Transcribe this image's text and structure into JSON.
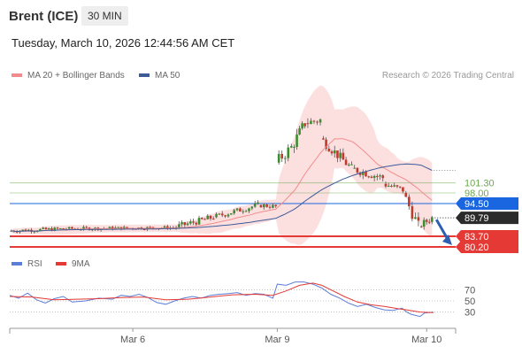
{
  "header": {
    "instrument": "Brent (ICE)",
    "timeframe": "30 MIN"
  },
  "datetime": "Tuesday, March 10, 2026 12:44:56 AM CET",
  "legend": {
    "bollinger_label": "MA 20 + Bollinger Bands",
    "ma50_label": "MA 50",
    "rsi_label": "RSI",
    "rsi_ma_label": "9MA"
  },
  "credit": "Research © 2026 Trading Central",
  "colors": {
    "bollinger": "#f28b8b",
    "ma50": "#3d5a99",
    "rsi": "#5b7fd6",
    "rsi_ma": "#e53935",
    "resistance": "#6aa84f",
    "support": "#e53935",
    "pivot": "#1a66e0",
    "last_price_bg": "#2b2b2b",
    "arrow": "#2f5fb3"
  },
  "chart_data": [
    {
      "type": "candlestick",
      "x_ticks": [
        "Mar 6",
        "Mar 9",
        "Mar 10"
      ],
      "levels": [
        {
          "label": "101.30",
          "value": 101.3,
          "kind": "resistance"
        },
        {
          "label": "98.00",
          "value": 98.0,
          "kind": "resistance"
        },
        {
          "label": "94.50",
          "value": 94.5,
          "kind": "pivot"
        },
        {
          "label": "83.70",
          "value": 83.7,
          "kind": "support"
        },
        {
          "label": "80.20",
          "value": 80.2,
          "kind": "support"
        }
      ],
      "last_price": {
        "label": "89.79",
        "value": 89.79
      },
      "arrow": "down",
      "ylim": [
        77,
        133
      ],
      "segments": [
        {
          "x0": 0.0,
          "x1": 0.13,
          "o": 85.5,
          "c": 86.2,
          "amp": 0.8
        },
        {
          "x0": 0.13,
          "x1": 0.37,
          "o": 86.2,
          "c": 86.6,
          "amp": 0.7
        },
        {
          "x0": 0.37,
          "x1": 0.46,
          "o": 86.6,
          "c": 90.0,
          "amp": 1.3
        },
        {
          "x0": 0.46,
          "x1": 0.56,
          "o": 90.0,
          "c": 94.0,
          "amp": 1.2
        },
        {
          "x0": 0.56,
          "x1": 0.6,
          "o": 94.0,
          "c": 93.5,
          "amp": 1.0
        },
        {
          "x0": 0.6,
          "x1": 0.635,
          "o": 108.0,
          "c": 113.0,
          "amp": 2.5
        },
        {
          "x0": 0.635,
          "x1": 0.665,
          "o": 113.0,
          "c": 121.0,
          "amp": 2.5
        },
        {
          "x0": 0.665,
          "x1": 0.7,
          "o": 121.0,
          "c": 122.0,
          "amp": 2.0
        },
        {
          "x0": 0.7,
          "x1": 0.77,
          "o": 116.0,
          "c": 106.0,
          "amp": 2.0
        },
        {
          "x0": 0.77,
          "x1": 0.84,
          "o": 106.0,
          "c": 103.0,
          "amp": 1.8
        },
        {
          "x0": 0.84,
          "x1": 0.885,
          "o": 101.0,
          "c": 99.0,
          "amp": 1.5
        },
        {
          "x0": 0.885,
          "x1": 0.92,
          "o": 98.0,
          "c": 87.0,
          "amp": 2.5
        },
        {
          "x0": 0.92,
          "x1": 0.95,
          "o": 87.0,
          "c": 89.79,
          "amp": 1.5
        }
      ]
    },
    {
      "type": "line",
      "name": "RSI",
      "y_ticks": [
        "70",
        "50",
        "30"
      ],
      "ylim": [
        15,
        85
      ],
      "rsi_points": [
        [
          0.0,
          60
        ],
        [
          0.02,
          55
        ],
        [
          0.04,
          64
        ],
        [
          0.06,
          52
        ],
        [
          0.08,
          46
        ],
        [
          0.1,
          54
        ],
        [
          0.12,
          58
        ],
        [
          0.14,
          48
        ],
        [
          0.17,
          50
        ],
        [
          0.2,
          55
        ],
        [
          0.23,
          53
        ],
        [
          0.25,
          60
        ],
        [
          0.27,
          58
        ],
        [
          0.29,
          62
        ],
        [
          0.31,
          56
        ],
        [
          0.33,
          47
        ],
        [
          0.35,
          44
        ],
        [
          0.37,
          50
        ],
        [
          0.39,
          55
        ],
        [
          0.41,
          58
        ],
        [
          0.43,
          55
        ],
        [
          0.45,
          60
        ],
        [
          0.47,
          62
        ],
        [
          0.49,
          63
        ],
        [
          0.51,
          65
        ],
        [
          0.53,
          60
        ],
        [
          0.55,
          63
        ],
        [
          0.57,
          62
        ],
        [
          0.59,
          55
        ],
        [
          0.6,
          80
        ],
        [
          0.62,
          78
        ],
        [
          0.64,
          84
        ],
        [
          0.66,
          84
        ],
        [
          0.68,
          80
        ],
        [
          0.7,
          73
        ],
        [
          0.72,
          62
        ],
        [
          0.74,
          55
        ],
        [
          0.76,
          46
        ],
        [
          0.78,
          40
        ],
        [
          0.8,
          44
        ],
        [
          0.82,
          38
        ],
        [
          0.84,
          34
        ],
        [
          0.86,
          33
        ],
        [
          0.88,
          37
        ],
        [
          0.89,
          30
        ],
        [
          0.9,
          26
        ],
        [
          0.92,
          22
        ],
        [
          0.93,
          28
        ],
        [
          0.95,
          30
        ]
      ],
      "ma_points": [
        [
          0.0,
          58
        ],
        [
          0.05,
          57
        ],
        [
          0.1,
          52
        ],
        [
          0.15,
          53
        ],
        [
          0.2,
          54
        ],
        [
          0.25,
          56
        ],
        [
          0.3,
          57
        ],
        [
          0.35,
          52
        ],
        [
          0.4,
          53
        ],
        [
          0.45,
          57
        ],
        [
          0.5,
          61
        ],
        [
          0.55,
          62
        ],
        [
          0.59,
          60
        ],
        [
          0.62,
          68
        ],
        [
          0.65,
          78
        ],
        [
          0.68,
          82
        ],
        [
          0.7,
          78
        ],
        [
          0.72,
          70
        ],
        [
          0.75,
          58
        ],
        [
          0.78,
          48
        ],
        [
          0.81,
          43
        ],
        [
          0.84,
          40
        ],
        [
          0.87,
          36
        ],
        [
          0.89,
          34
        ],
        [
          0.92,
          30
        ],
        [
          0.95,
          29
        ]
      ]
    }
  ]
}
